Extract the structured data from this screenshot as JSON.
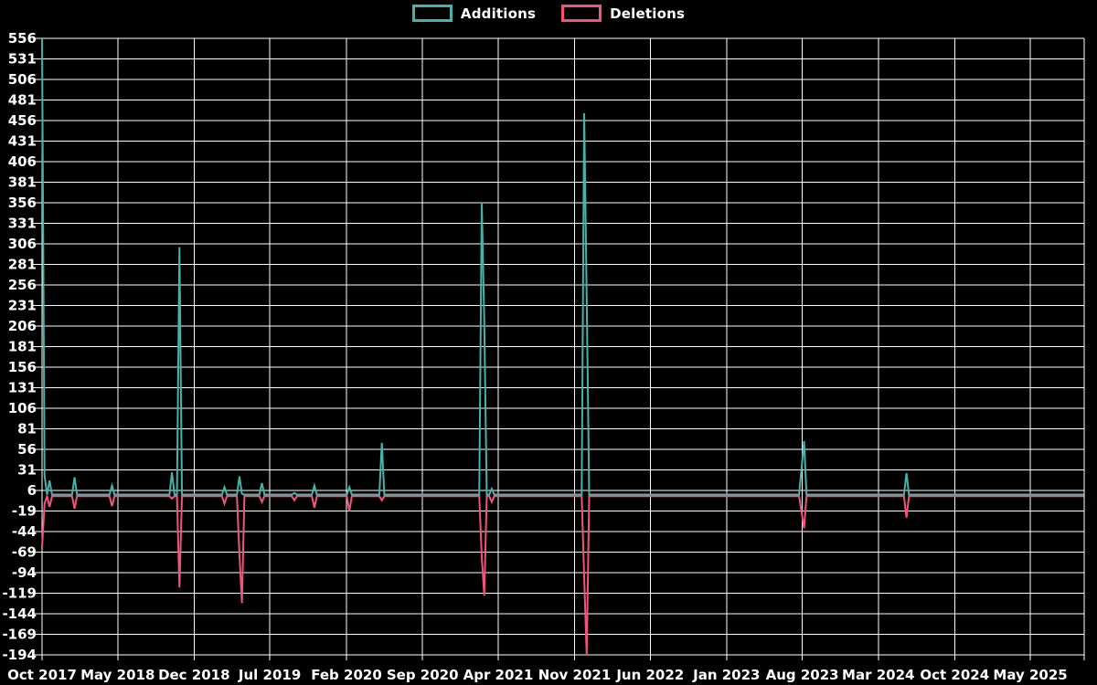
{
  "legend": {
    "additions_label": "Additions",
    "deletions_label": "Deletions"
  },
  "colors": {
    "background": "#000000",
    "grid": "#ffffff",
    "text": "#ffffff",
    "additions": "#43b3ab",
    "deletions": "#f0547c"
  },
  "chart_data": {
    "type": "line",
    "title": "",
    "interval": "weekly",
    "legend_position": "top-center",
    "grid": true,
    "series_names": [
      "Additions",
      "Deletions"
    ],
    "x": {
      "start_date": "2017-10-01",
      "tick_labels": [
        "Oct 2017",
        "May 2018",
        "Dec 2018",
        "Jul 2019",
        "Feb 2020",
        "Sep 2020",
        "Apr 2021",
        "Nov 2021",
        "Jun 2022",
        "Jan 2023",
        "Aug 2023",
        "Mar 2024",
        "Oct 2024",
        "May 2025"
      ],
      "tick_interval_months": 7
    },
    "y": {
      "min": -194,
      "max": 556,
      "step": 25,
      "tick_labels": [
        556,
        531,
        506,
        481,
        456,
        431,
        406,
        381,
        356,
        331,
        306,
        281,
        256,
        231,
        206,
        181,
        156,
        131,
        106,
        81,
        56,
        31,
        6,
        -19,
        -44,
        -69,
        -94,
        -119,
        -144,
        -169,
        -194
      ]
    },
    "baseline": {
      "additions": 1,
      "deletions": -1
    },
    "spikes": [
      {
        "date": "2017-10-01",
        "additions": 556,
        "deletions": -64
      },
      {
        "date": "2017-10-08",
        "additions": 24,
        "deletions": -10
      },
      {
        "date": "2017-10-22",
        "additions": 18,
        "deletions": -14
      },
      {
        "date": "2017-12-31",
        "additions": 22,
        "deletions": -16
      },
      {
        "date": "2018-04-15",
        "additions": 12,
        "deletions": -13
      },
      {
        "date": "2018-09-30",
        "additions": 28,
        "deletions": -4
      },
      {
        "date": "2018-10-21",
        "additions": 302,
        "deletions": -112
      },
      {
        "date": "2019-02-24",
        "additions": 10,
        "deletions": -10
      },
      {
        "date": "2019-04-07",
        "additions": 23,
        "deletions": -71
      },
      {
        "date": "2019-04-14",
        "additions": 2,
        "deletions": -131
      },
      {
        "date": "2019-06-09",
        "additions": 15,
        "deletions": -8
      },
      {
        "date": "2019-09-08",
        "additions": 3,
        "deletions": -6
      },
      {
        "date": "2019-11-03",
        "additions": 12,
        "deletions": -15
      },
      {
        "date": "2020-02-09",
        "additions": 10,
        "deletions": -19
      },
      {
        "date": "2020-05-10",
        "additions": 64,
        "deletions": -6
      },
      {
        "date": "2021-02-14",
        "additions": 356,
        "deletions": -75
      },
      {
        "date": "2021-02-21",
        "additions": 212,
        "deletions": -122
      },
      {
        "date": "2021-03-14",
        "additions": 8,
        "deletions": -8
      },
      {
        "date": "2021-11-28",
        "additions": 465,
        "deletions": -100
      },
      {
        "date": "2021-12-05",
        "additions": 240,
        "deletions": -194
      },
      {
        "date": "2023-07-30",
        "additions": 33,
        "deletions": -20
      },
      {
        "date": "2023-08-06",
        "additions": 66,
        "deletions": -40
      },
      {
        "date": "2024-05-19",
        "additions": 27,
        "deletions": -27
      }
    ]
  }
}
